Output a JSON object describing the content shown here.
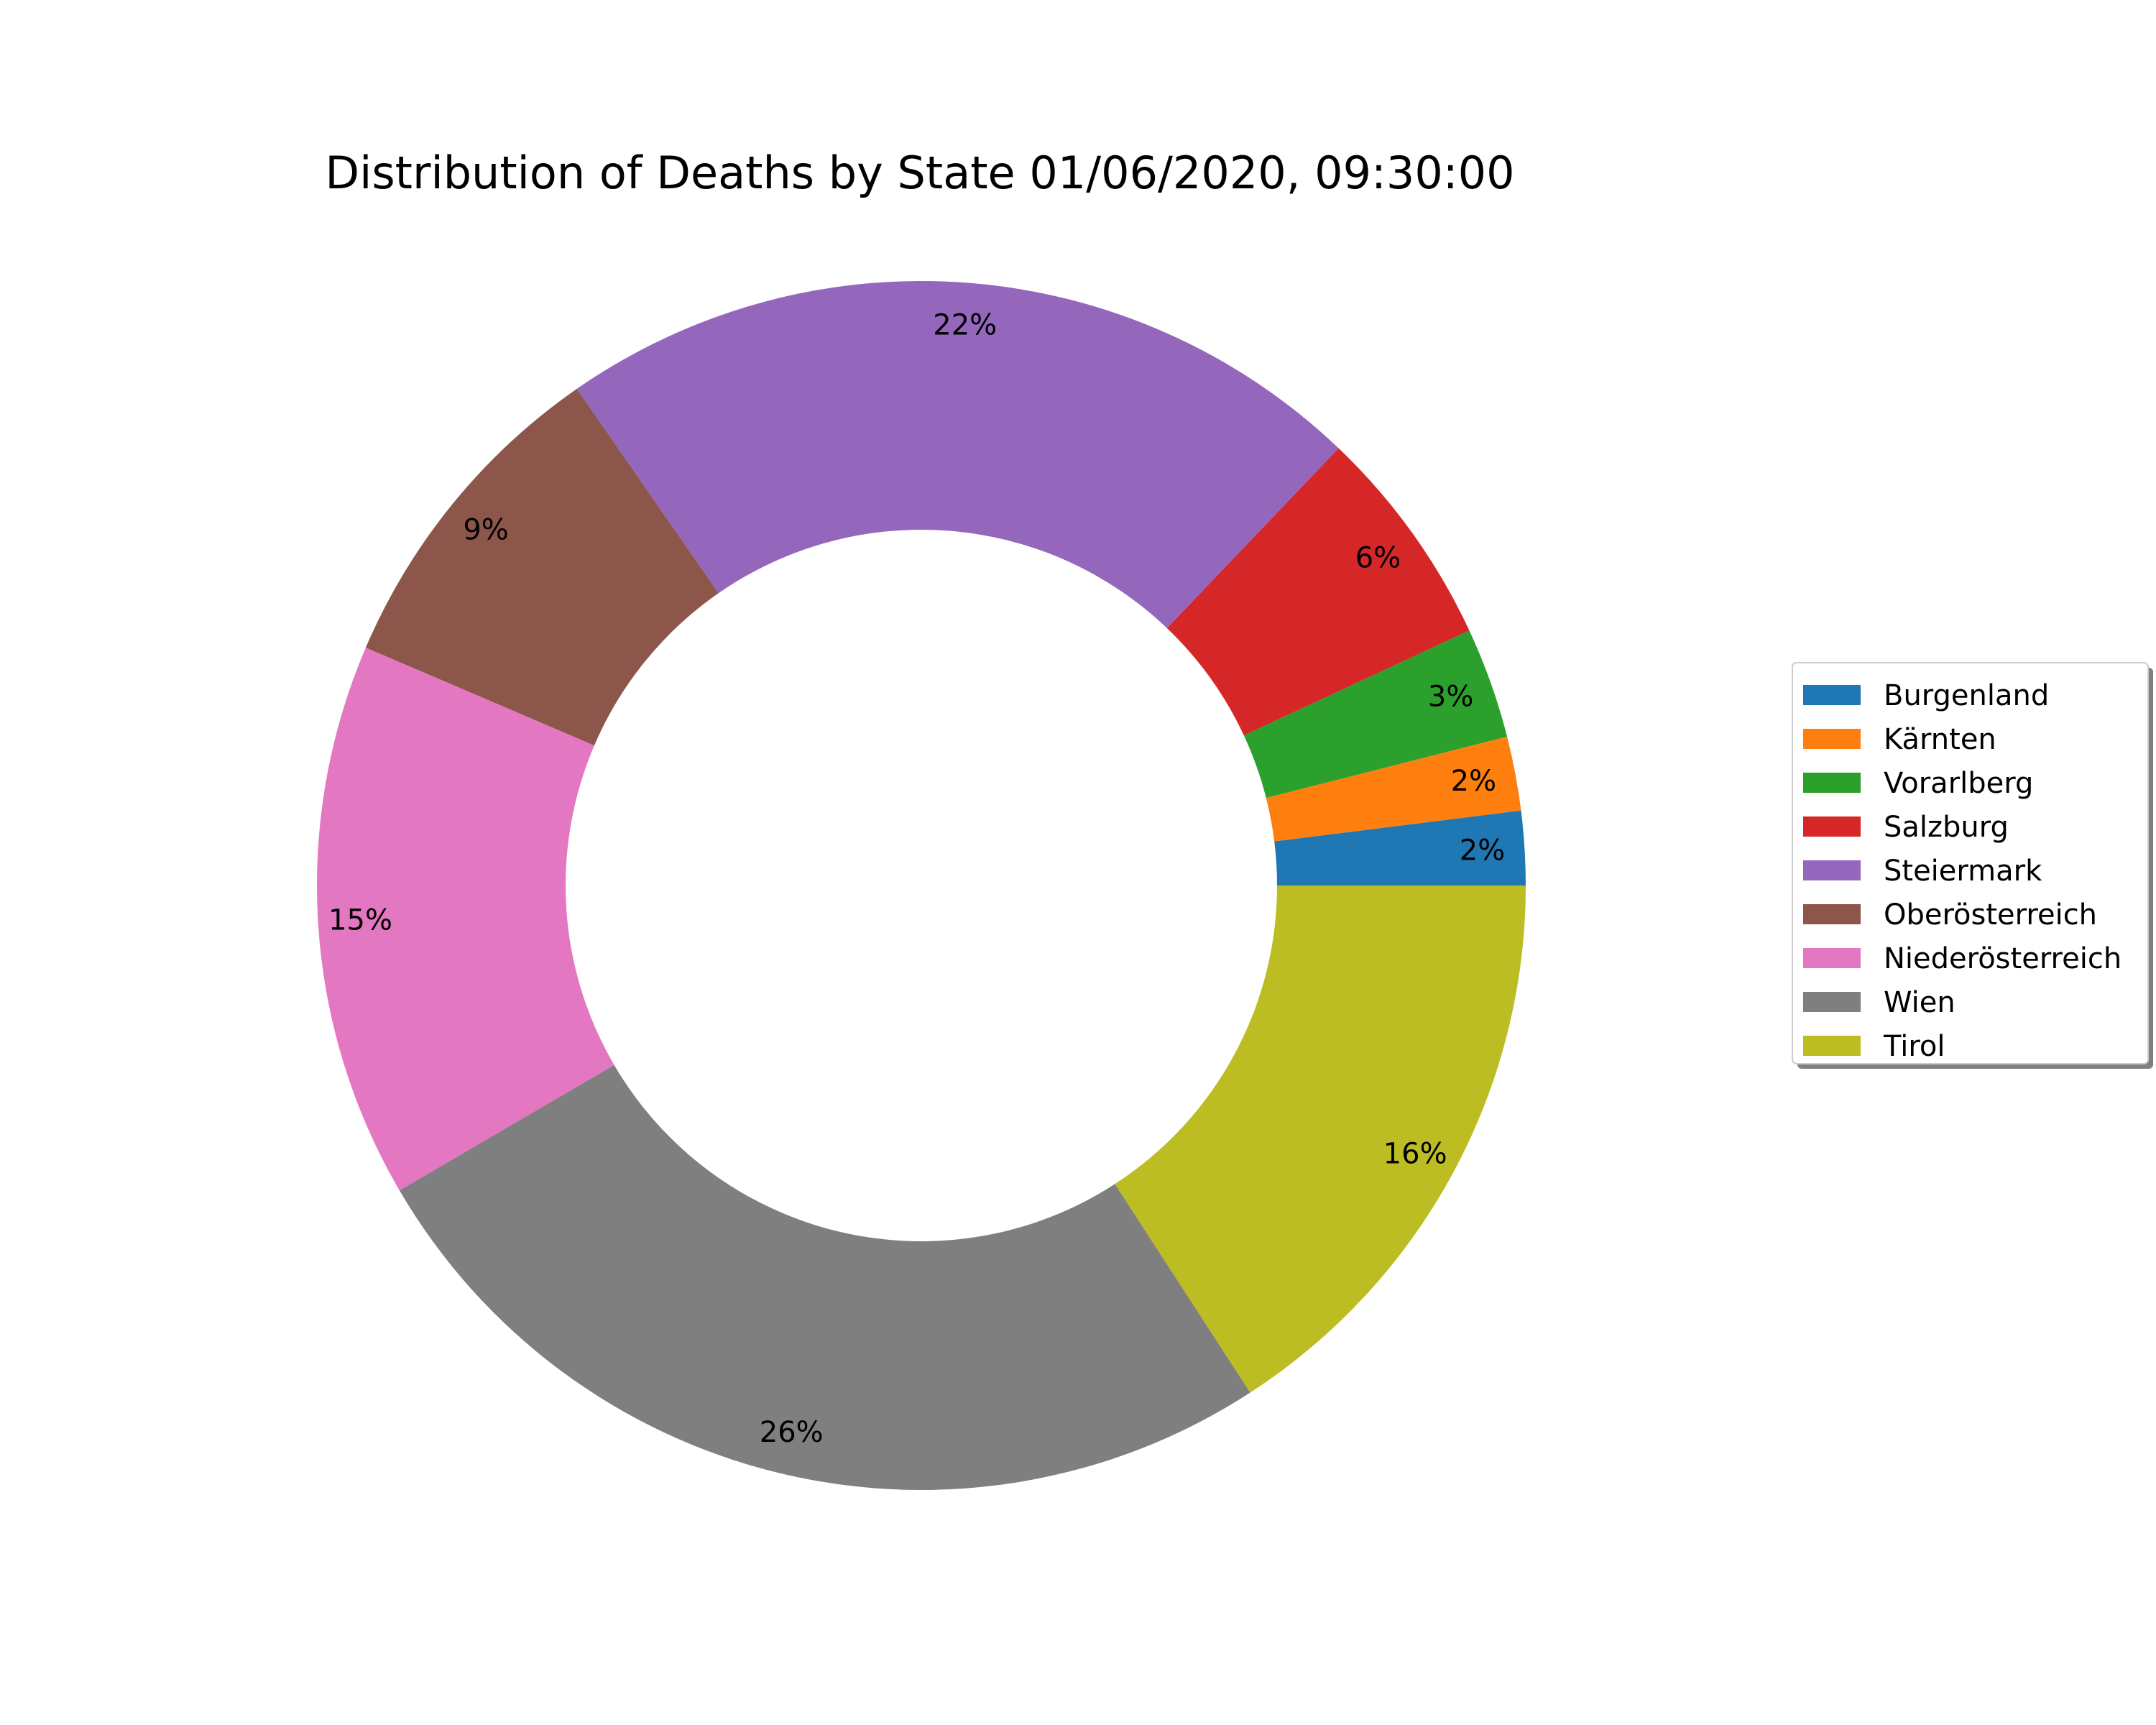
{
  "chart_data": {
    "type": "pie",
    "variant": "donut",
    "title": "Distribution of Deaths by State 01/06/2020, 09:30:00",
    "unit": "%",
    "legend_position": "right",
    "slices": [
      {
        "label": "Burgenland",
        "value": 2,
        "color": "#1f77b4"
      },
      {
        "label": "Kärnten",
        "value": 2,
        "color": "#ff7f0e"
      },
      {
        "label": "Vorarlberg",
        "value": 3,
        "color": "#2ca02c"
      },
      {
        "label": "Salzburg",
        "value": 6,
        "color": "#d62728"
      },
      {
        "label": "Steiermark",
        "value": 22,
        "color": "#9467bd"
      },
      {
        "label": "Oberösterreich",
        "value": 9,
        "color": "#8c564b"
      },
      {
        "label": "Niederösterreich",
        "value": 15,
        "color": "#e377c2"
      },
      {
        "label": "Wien",
        "value": 26,
        "color": "#7f7f7f"
      },
      {
        "label": "Tirol",
        "value": 16,
        "color": "#bcbd22"
      }
    ]
  }
}
